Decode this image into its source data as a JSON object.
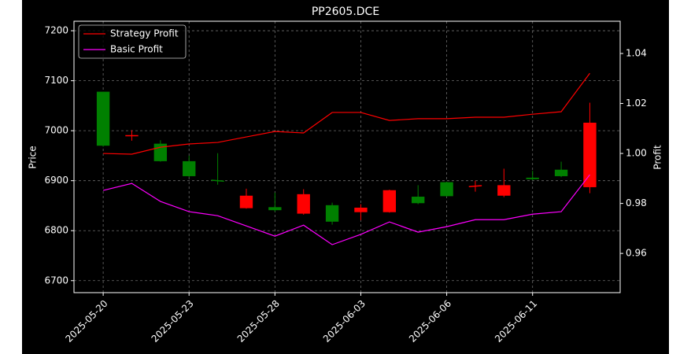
{
  "chart_data": {
    "type": "candlestick",
    "title": "PP2605.DCE",
    "ylabel": "Price",
    "y2label": "Profit",
    "categories": [
      "2025-05-20",
      null,
      null,
      "2025-05-23",
      null,
      null,
      "2025-05-28",
      null,
      null,
      "2025-06-03",
      null,
      null,
      "2025-06-06",
      null,
      null,
      "2025-06-11",
      null,
      null
    ],
    "open": [
      7078,
      6990,
      6974,
      6939,
      6901,
      6845,
      6847,
      6834,
      6851,
      6837,
      6837,
      6868,
      6897,
      6888,
      6870,
      6906,
      6922,
      6887
    ],
    "high": [
      7078,
      7001,
      6981,
      6950,
      6955,
      6884,
      6876,
      6883,
      6856,
      6853,
      6882,
      6891,
      6898,
      6900,
      6924,
      6920,
      6938,
      7056
    ],
    "low": [
      6968,
      6980,
      6938,
      6907,
      6892,
      6844,
      6838,
      6832,
      6812,
      6821,
      6836,
      6853,
      6868,
      6878,
      6867,
      6901,
      6907,
      6875
    ],
    "close": [
      6970,
      6990,
      6939,
      6909,
      6899,
      6870,
      6841,
      6873,
      6818,
      6846,
      6881,
      6855,
      6869,
      6890,
      6891,
      6903,
      6909,
      7016
    ],
    "up_color": "#ff0000",
    "down_color": "#008000",
    "series": [
      {
        "name": "Strategy Profit",
        "color": "#ff0000",
        "axis": "y2",
        "values": [
          1.0,
          0.9997,
          1.0025,
          1.0038,
          1.0044,
          1.0066,
          1.0088,
          1.0082,
          1.0164,
          1.0164,
          1.0132,
          1.0139,
          1.0139,
          1.0145,
          1.0145,
          1.0157,
          1.0167,
          1.0321
        ]
      },
      {
        "name": "Basic Profit",
        "color": "#ff00ff",
        "axis": "y2",
        "values": [
          0.9852,
          0.988,
          0.9808,
          0.9767,
          0.9751,
          0.971,
          0.9669,
          0.9713,
          0.9635,
          0.9676,
          0.9726,
          0.9685,
          0.9707,
          0.9735,
          0.9735,
          0.9757,
          0.9767,
          0.9915
        ]
      }
    ],
    "ylim": [
      6676,
      7219
    ],
    "yticks": [
      6700,
      6800,
      6900,
      7000,
      7100,
      7200
    ],
    "y2lim": [
      0.9443,
      1.0529
    ],
    "y2ticks": [
      0.96,
      0.98,
      {
        "value": 1.0,
        "label": "1.00"
      },
      1.02,
      1.04
    ],
    "grid": true,
    "legend": "upper left"
  }
}
